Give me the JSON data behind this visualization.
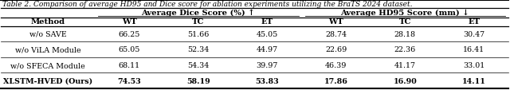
{
  "title": "Table 2. Comparison of average HD95 and Dice score for ablation experiments utilizing the BraTS 2024 dataset.",
  "col_group_labels": [
    "Average Dice Score (%) ↑",
    "Average HD95 Score (mm) ↓"
  ],
  "sub_cols": [
    "WT",
    "TC",
    "ET",
    "WT",
    "TC",
    "ET"
  ],
  "methods": [
    "w/o SAVE",
    "w/o ViLA Module",
    "w/o SFECA Module",
    "XLSTM-HVED (Ours)"
  ],
  "bold_row": 3,
  "data": [
    [
      "66.25",
      "51.66",
      "45.05",
      "28.74",
      "28.18",
      "30.47"
    ],
    [
      "65.05",
      "52.34",
      "44.97",
      "22.69",
      "22.36",
      "16.41"
    ],
    [
      "68.11",
      "54.34",
      "39.97",
      "46.39",
      "41.17",
      "33.01"
    ],
    [
      "74.53",
      "58.19",
      "53.83",
      "17.86",
      "16.90",
      "14.11"
    ]
  ],
  "bg_color": "#ffffff",
  "line_color": "#000000",
  "font_size": 6.8,
  "title_font_size": 6.5,
  "header_font_size": 7.2
}
